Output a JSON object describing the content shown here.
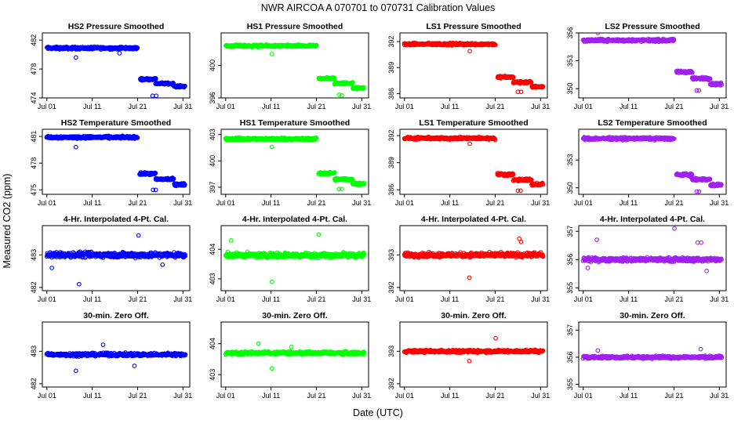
{
  "figure": {
    "title": "NWR   AIRCOA A   070701 to 070731   Calibration Values",
    "xlabel": "Date (UTC)",
    "ylabel": "Measured CO2 (ppm)"
  },
  "chart_data": [
    {
      "type": "scatter",
      "title": "HS2 Pressure Smoothed",
      "color": "#0000ff",
      "x_ticks": [
        "Jul 01",
        "Jul 11",
        "Jul 21",
        "Jul 31"
      ],
      "x_tick_days": [
        1,
        11,
        21,
        31
      ],
      "xlim": [
        0,
        32.5
      ],
      "ylim": [
        474,
        483
      ],
      "y_ticks": [
        474,
        478,
        482
      ],
      "segments": [
        {
          "start_day": 1,
          "end_day": 21,
          "level": 480.9,
          "noise": 0.25
        },
        {
          "start_day": 21.5,
          "end_day": 25,
          "level": 476.6,
          "noise": 0.2
        },
        {
          "start_day": 25,
          "end_day": 29,
          "level": 476.0,
          "noise": 0.2
        },
        {
          "start_day": 29,
          "end_day": 31.5,
          "level": 475.6,
          "noise": 0.2
        }
      ],
      "outliers": [
        {
          "x": 7.4,
          "y": 479.6
        },
        {
          "x": 24.3,
          "y": 474.3
        },
        {
          "x": 25.1,
          "y": 474.3
        },
        {
          "x": 17.0,
          "y": 480.2
        }
      ]
    },
    {
      "type": "scatter",
      "title": "HS1 Pressure Smoothed",
      "color": "#00ff00",
      "x_ticks": [
        "Jul 01",
        "Jul 11",
        "Jul 21",
        "Jul 31"
      ],
      "x_tick_days": [
        1,
        11,
        21,
        31
      ],
      "xlim": [
        0,
        32.5
      ],
      "ylim": [
        396,
        404
      ],
      "y_ticks": [
        396,
        400
      ],
      "segments": [
        {
          "start_day": 1,
          "end_day": 21,
          "level": 402.4,
          "noise": 0.2
        },
        {
          "start_day": 21.5,
          "end_day": 25,
          "level": 398.4,
          "noise": 0.2
        },
        {
          "start_day": 25,
          "end_day": 29,
          "level": 397.8,
          "noise": 0.2
        },
        {
          "start_day": 29,
          "end_day": 31.5,
          "level": 397.2,
          "noise": 0.2
        }
      ],
      "outliers": [
        {
          "x": 11.2,
          "y": 401.4
        },
        {
          "x": 26.0,
          "y": 396.4
        },
        {
          "x": 26.6,
          "y": 396.3
        }
      ]
    },
    {
      "type": "scatter",
      "title": "LS1 Pressure Smoothed",
      "color": "#ff0000",
      "x_ticks": [
        "Jul 01",
        "Jul 11",
        "Jul 21",
        "Jul 31"
      ],
      "x_tick_days": [
        1,
        11,
        21,
        31
      ],
      "xlim": [
        0,
        32.5
      ],
      "ylim": [
        385.5,
        393
      ],
      "y_ticks": [
        386,
        389,
        392
      ],
      "segments": [
        {
          "start_day": 1,
          "end_day": 21,
          "level": 391.7,
          "noise": 0.2
        },
        {
          "start_day": 21.5,
          "end_day": 25,
          "level": 387.9,
          "noise": 0.2
        },
        {
          "start_day": 25,
          "end_day": 29,
          "level": 387.3,
          "noise": 0.2
        },
        {
          "start_day": 29,
          "end_day": 31.5,
          "level": 386.8,
          "noise": 0.2
        }
      ],
      "outliers": [
        {
          "x": 15.4,
          "y": 390.9
        },
        {
          "x": 26.0,
          "y": 386.2
        },
        {
          "x": 26.7,
          "y": 386.2
        }
      ]
    },
    {
      "type": "scatter",
      "title": "LS2 Pressure Smoothed",
      "color": "#a020f0",
      "x_ticks": [
        "Jul 01",
        "Jul 11",
        "Jul 21",
        "Jul 31"
      ],
      "x_tick_days": [
        1,
        11,
        21,
        31
      ],
      "xlim": [
        0,
        32.5
      ],
      "ylim": [
        349,
        356
      ],
      "y_ticks": [
        350,
        353,
        356
      ],
      "segments": [
        {
          "start_day": 1,
          "end_day": 21,
          "level": 355.2,
          "noise": 0.2
        },
        {
          "start_day": 21.5,
          "end_day": 25,
          "level": 351.8,
          "noise": 0.2
        },
        {
          "start_day": 25,
          "end_day": 29,
          "level": 351.1,
          "noise": 0.2
        },
        {
          "start_day": 29,
          "end_day": 31.5,
          "level": 350.5,
          "noise": 0.2
        }
      ],
      "outliers": [
        {
          "x": 4.2,
          "y": 356.0
        },
        {
          "x": 26.0,
          "y": 349.8
        },
        {
          "x": 26.5,
          "y": 349.8
        }
      ]
    },
    {
      "type": "scatter",
      "title": "HS2 Temperature Smoothed",
      "color": "#0000ff",
      "x_ticks": [
        "Jul 01",
        "Jul 11",
        "Jul 21",
        "Jul 31"
      ],
      "x_tick_days": [
        1,
        11,
        21,
        31
      ],
      "xlim": [
        0,
        32.5
      ],
      "ylim": [
        474.5,
        481.8
      ],
      "y_ticks": [
        475,
        478,
        481
      ],
      "segments": [
        {
          "start_day": 1,
          "end_day": 21,
          "level": 480.9,
          "noise": 0.2
        },
        {
          "start_day": 21.5,
          "end_day": 25,
          "level": 476.8,
          "noise": 0.2
        },
        {
          "start_day": 25,
          "end_day": 29,
          "level": 476.2,
          "noise": 0.2
        },
        {
          "start_day": 29,
          "end_day": 31.5,
          "level": 475.6,
          "noise": 0.2
        }
      ],
      "outliers": [
        {
          "x": 7.4,
          "y": 479.8
        },
        {
          "x": 24.4,
          "y": 475.0
        },
        {
          "x": 25.0,
          "y": 475.0
        }
      ]
    },
    {
      "type": "scatter",
      "title": "HS1 Temperature Smoothed",
      "color": "#00ff00",
      "x_ticks": [
        "Jul 01",
        "Jul 11",
        "Jul 21",
        "Jul 31"
      ],
      "x_tick_days": [
        1,
        11,
        21,
        31
      ],
      "xlim": [
        0,
        32.5
      ],
      "ylim": [
        396.2,
        403.6
      ],
      "y_ticks": [
        397,
        400,
        403
      ],
      "segments": [
        {
          "start_day": 1,
          "end_day": 21,
          "level": 402.5,
          "noise": 0.2
        },
        {
          "start_day": 21.5,
          "end_day": 25,
          "level": 398.6,
          "noise": 0.2
        },
        {
          "start_day": 25,
          "end_day": 29,
          "level": 397.9,
          "noise": 0.2
        },
        {
          "start_day": 29,
          "end_day": 31.5,
          "level": 397.4,
          "noise": 0.2
        }
      ],
      "outliers": [
        {
          "x": 11.2,
          "y": 401.6
        },
        {
          "x": 26.0,
          "y": 396.8
        },
        {
          "x": 26.6,
          "y": 396.8
        }
      ]
    },
    {
      "type": "scatter",
      "title": "LS1 Temperature Smoothed",
      "color": "#ff0000",
      "x_ticks": [
        "Jul 01",
        "Jul 11",
        "Jul 21",
        "Jul 31"
      ],
      "x_tick_days": [
        1,
        11,
        21,
        31
      ],
      "xlim": [
        0,
        32.5
      ],
      "ylim": [
        385.5,
        392.7
      ],
      "y_ticks": [
        386,
        389,
        392
      ],
      "segments": [
        {
          "start_day": 1,
          "end_day": 21,
          "level": 391.7,
          "noise": 0.2
        },
        {
          "start_day": 21.5,
          "end_day": 25,
          "level": 387.7,
          "noise": 0.2
        },
        {
          "start_day": 25,
          "end_day": 29,
          "level": 387.1,
          "noise": 0.2
        },
        {
          "start_day": 29,
          "end_day": 31.5,
          "level": 386.6,
          "noise": 0.2
        }
      ],
      "outliers": [
        {
          "x": 15.4,
          "y": 391.1
        },
        {
          "x": 26.0,
          "y": 385.9
        },
        {
          "x": 26.6,
          "y": 385.9
        }
      ]
    },
    {
      "type": "scatter",
      "title": "LS2 Temperature Smoothed",
      "color": "#a020f0",
      "x_ticks": [
        "Jul 01",
        "Jul 11",
        "Jul 21",
        "Jul 31"
      ],
      "x_tick_days": [
        1,
        11,
        21,
        31
      ],
      "xlim": [
        0,
        32.5
      ],
      "ylim": [
        349.3,
        356.3
      ],
      "y_ticks": [
        350,
        353
      ],
      "segments": [
        {
          "start_day": 1,
          "end_day": 21,
          "level": 355.3,
          "noise": 0.2
        },
        {
          "start_day": 21.5,
          "end_day": 25,
          "level": 351.4,
          "noise": 0.2
        },
        {
          "start_day": 25,
          "end_day": 29,
          "level": 350.9,
          "noise": 0.2
        },
        {
          "start_day": 29,
          "end_day": 31.5,
          "level": 350.3,
          "noise": 0.2
        }
      ],
      "outliers": [
        {
          "x": 26.0,
          "y": 349.6
        },
        {
          "x": 26.5,
          "y": 349.6
        }
      ]
    },
    {
      "type": "scatter",
      "title": "4-Hr. Interpolated 4-Pt. Cal.",
      "color": "#0000ff",
      "x_ticks": [
        "Jul 01",
        "Jul 11",
        "Jul 21",
        "Jul 31"
      ],
      "x_tick_days": [
        1,
        11,
        21,
        31
      ],
      "xlim": [
        0,
        32.5
      ],
      "ylim": [
        481.9,
        483.9
      ],
      "y_ticks": [
        482.0,
        483.0
      ],
      "segments": [
        {
          "start_day": 1,
          "end_day": 31.5,
          "level": 483.0,
          "noise": 0.12
        }
      ],
      "outliers": [
        {
          "x": 21.2,
          "y": 483.6
        },
        {
          "x": 8.1,
          "y": 482.1
        },
        {
          "x": 2.1,
          "y": 482.6
        },
        {
          "x": 26.5,
          "y": 482.7
        }
      ]
    },
    {
      "type": "scatter",
      "title": "4-Hr. Interpolated 4-Pt. Cal.",
      "color": "#00ff00",
      "x_ticks": [
        "Jul 01",
        "Jul 11",
        "Jul 21",
        "Jul 31"
      ],
      "x_tick_days": [
        1,
        11,
        21,
        31
      ],
      "xlim": [
        0,
        32.5
      ],
      "ylim": [
        402.6,
        404.8
      ],
      "y_ticks": [
        403.0,
        404.0
      ],
      "segments": [
        {
          "start_day": 1,
          "end_day": 31.5,
          "level": 403.8,
          "noise": 0.12
        }
      ],
      "outliers": [
        {
          "x": 21.5,
          "y": 404.5
        },
        {
          "x": 11.2,
          "y": 402.9
        },
        {
          "x": 2.2,
          "y": 404.3
        }
      ]
    },
    {
      "type": "scatter",
      "title": "4-Hr. Interpolated 4-Pt. Cal.",
      "color": "#ff0000",
      "x_ticks": [
        "Jul 01",
        "Jul 11",
        "Jul 21",
        "Jul 31"
      ],
      "x_tick_days": [
        1,
        11,
        21,
        31
      ],
      "xlim": [
        0,
        32.5
      ],
      "ylim": [
        391.9,
        393.9
      ],
      "y_ticks": [
        392.0,
        393.0
      ],
      "segments": [
        {
          "start_day": 1,
          "end_day": 31.5,
          "level": 393.0,
          "noise": 0.1
        }
      ],
      "outliers": [
        {
          "x": 26.3,
          "y": 393.5
        },
        {
          "x": 15.3,
          "y": 392.3
        },
        {
          "x": 26.7,
          "y": 393.4
        }
      ]
    },
    {
      "type": "scatter",
      "title": "4-Hr. Interpolated 4-Pt. Cal.",
      "color": "#a020f0",
      "x_ticks": [
        "Jul 01",
        "Jul 11",
        "Jul 21",
        "Jul 31"
      ],
      "x_tick_days": [
        1,
        11,
        21,
        31
      ],
      "xlim": [
        0,
        32.5
      ],
      "ylim": [
        354.9,
        357.2
      ],
      "y_ticks": [
        355.0,
        356.0,
        357.0
      ],
      "segments": [
        {
          "start_day": 1,
          "end_day": 31.5,
          "level": 356.0,
          "noise": 0.1
        }
      ],
      "outliers": [
        {
          "x": 21.1,
          "y": 357.1
        },
        {
          "x": 4.0,
          "y": 356.7
        },
        {
          "x": 26.2,
          "y": 356.6
        },
        {
          "x": 27.0,
          "y": 356.6
        },
        {
          "x": 2.0,
          "y": 355.7
        },
        {
          "x": 28.2,
          "y": 355.6
        }
      ]
    },
    {
      "type": "scatter",
      "title": "30-min. Zero Off.",
      "color": "#0000ff",
      "x_ticks": [
        "Jul 01",
        "Jul 11",
        "Jul 21",
        "Jul 31"
      ],
      "x_tick_days": [
        1,
        11,
        21,
        31
      ],
      "xlim": [
        0,
        32.5
      ],
      "ylim": [
        481.9,
        483.9
      ],
      "y_ticks": [
        482.0,
        483.0
      ],
      "segments": [
        {
          "start_day": 1,
          "end_day": 31.5,
          "level": 482.9,
          "noise": 0.07
        }
      ],
      "outliers": [
        {
          "x": 7.4,
          "y": 482.4
        },
        {
          "x": 20.3,
          "y": 482.55
        },
        {
          "x": 13.4,
          "y": 483.2
        }
      ]
    },
    {
      "type": "scatter",
      "title": "30-min. Zero Off.",
      "color": "#00ff00",
      "x_ticks": [
        "Jul 01",
        "Jul 11",
        "Jul 21",
        "Jul 31"
      ],
      "x_tick_days": [
        1,
        11,
        21,
        31
      ],
      "xlim": [
        0,
        32.5
      ],
      "ylim": [
        402.6,
        404.7
      ],
      "y_ticks": [
        403.0,
        404.0
      ],
      "segments": [
        {
          "start_day": 1,
          "end_day": 31.5,
          "level": 403.7,
          "noise": 0.07
        }
      ],
      "outliers": [
        {
          "x": 11.2,
          "y": 403.2
        },
        {
          "x": 8.2,
          "y": 404.0
        },
        {
          "x": 15.5,
          "y": 403.9
        }
      ]
    },
    {
      "type": "scatter",
      "title": "30-min. Zero Off.",
      "color": "#ff0000",
      "x_ticks": [
        "Jul 01",
        "Jul 11",
        "Jul 21",
        "Jul 31"
      ],
      "x_tick_days": [
        1,
        11,
        21,
        31
      ],
      "xlim": [
        0,
        32.5
      ],
      "ylim": [
        391.9,
        393.9
      ],
      "y_ticks": [
        392.0,
        393.0
      ],
      "segments": [
        {
          "start_day": 1,
          "end_day": 31.5,
          "level": 393.0,
          "noise": 0.06
        }
      ],
      "outliers": [
        {
          "x": 21.1,
          "y": 393.4
        },
        {
          "x": 15.3,
          "y": 392.7
        }
      ]
    },
    {
      "type": "scatter",
      "title": "30-min. Zero Off.",
      "color": "#a020f0",
      "x_ticks": [
        "Jul 01",
        "Jul 11",
        "Jul 21",
        "Jul 31"
      ],
      "x_tick_days": [
        1,
        11,
        21,
        31
      ],
      "xlim": [
        0,
        32.5
      ],
      "ylim": [
        354.9,
        357.3
      ],
      "y_ticks": [
        355.0,
        356.0,
        357.0
      ],
      "segments": [
        {
          "start_day": 1,
          "end_day": 31.5,
          "level": 356.0,
          "noise": 0.07
        }
      ],
      "outliers": [
        {
          "x": 4.2,
          "y": 356.25
        },
        {
          "x": 26.9,
          "y": 356.3
        }
      ]
    }
  ]
}
